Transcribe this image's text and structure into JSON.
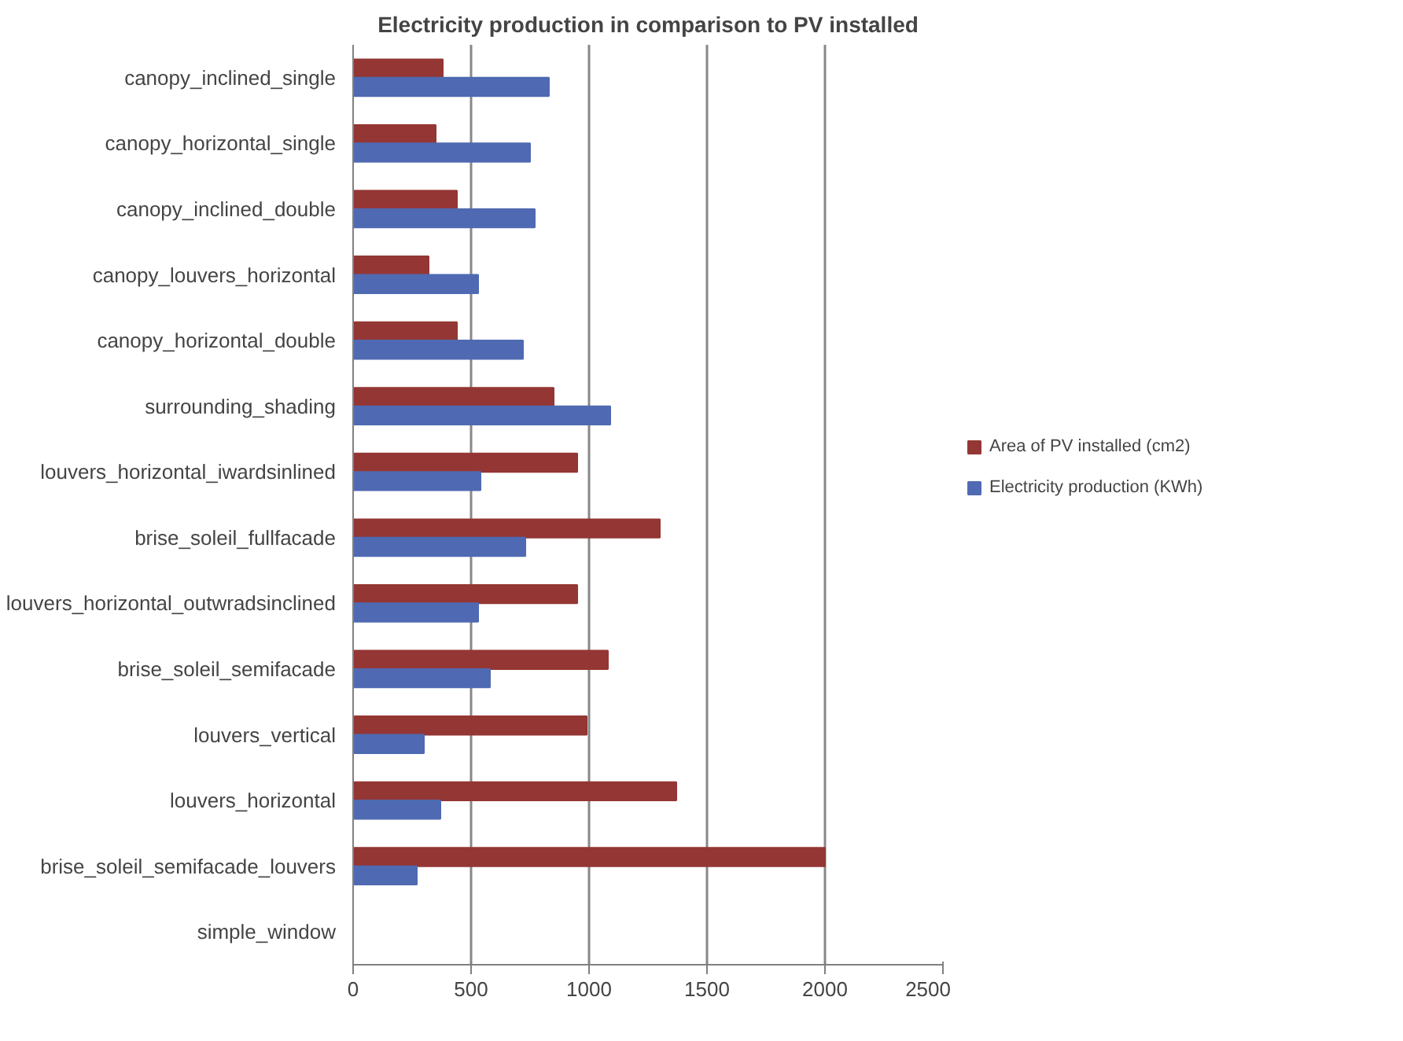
{
  "chart_data": {
    "type": "bar",
    "orientation": "horizontal",
    "title": "Electricity production in comparison to PV installed",
    "categories": [
      "canopy_inclined_single",
      "canopy_horizontal_single",
      "canopy_inclined_double",
      "canopy_louvers_horizontal",
      "canopy_horizontal_double",
      "surrounding_shading",
      "louvers_horizontal_iwardsinlined",
      "brise_soleil_fullfacade",
      "louvers_horizontal_outwradsinclined",
      "brise_soleil_semifacade",
      "louvers_vertical",
      "louvers_horizontal",
      "brise_soleil_semifacade_louvers",
      "simple_window"
    ],
    "series": [
      {
        "name": "Area of PV installed (cm2)",
        "color": "#943634",
        "values": [
          380,
          350,
          440,
          320,
          440,
          850,
          950,
          1300,
          950,
          1080,
          990,
          1370,
          2000,
          0
        ]
      },
      {
        "name": "Electricity production (KWh)",
        "color": "#4f6ab2",
        "values": [
          830,
          750,
          770,
          530,
          720,
          1090,
          540,
          730,
          530,
          580,
          300,
          370,
          270,
          0
        ]
      }
    ],
    "xlim": [
      0,
      2500
    ],
    "xticks": [
      0,
      500,
      1000,
      1500,
      2000,
      2500
    ],
    "grid": "x",
    "legend": "right"
  }
}
